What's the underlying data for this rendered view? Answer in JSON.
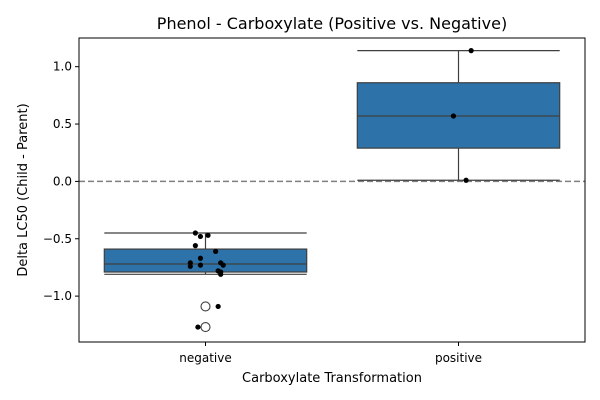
{
  "chart_data": {
    "type": "box",
    "title": "Phenol - Carboxylate (Positive vs. Negative)",
    "xlabel": "Carboxylate Transformation",
    "ylabel": "Delta LC50 (Child - Parent)",
    "categories": [
      "negative",
      "positive"
    ],
    "ylim": [
      -1.4,
      1.25
    ],
    "yticks": [
      -1.0,
      -0.5,
      0.0,
      0.5,
      1.0
    ],
    "ytick_labels": [
      "−1.0",
      "−0.5",
      "0.0",
      "0.5",
      "1.0"
    ],
    "reference_line": 0.0,
    "box_color": "#2d72a8",
    "boxes": [
      {
        "category": "negative",
        "whisker_low": -0.81,
        "q1": -0.79,
        "median": -0.72,
        "q3": -0.59,
        "whisker_high": -0.45,
        "outliers": [
          -1.09,
          -1.27
        ]
      },
      {
        "category": "positive",
        "whisker_low": 0.01,
        "q1": 0.29,
        "median": 0.57,
        "q3": 0.86,
        "whisker_high": 1.14,
        "outliers": []
      }
    ],
    "points": [
      {
        "category": "negative",
        "jitter": -0.04,
        "y": -0.45
      },
      {
        "category": "negative",
        "jitter": -0.02,
        "y": -0.48
      },
      {
        "category": "negative",
        "jitter": 0.01,
        "y": -0.47
      },
      {
        "category": "negative",
        "jitter": -0.04,
        "y": -0.56
      },
      {
        "category": "negative",
        "jitter": 0.04,
        "y": -0.61
      },
      {
        "category": "negative",
        "jitter": -0.02,
        "y": -0.67
      },
      {
        "category": "negative",
        "jitter": -0.06,
        "y": -0.71
      },
      {
        "category": "negative",
        "jitter": -0.06,
        "y": -0.74
      },
      {
        "category": "negative",
        "jitter": -0.02,
        "y": -0.73
      },
      {
        "category": "negative",
        "jitter": 0.06,
        "y": -0.71
      },
      {
        "category": "negative",
        "jitter": 0.07,
        "y": -0.73
      },
      {
        "category": "negative",
        "jitter": 0.05,
        "y": -0.78
      },
      {
        "category": "negative",
        "jitter": 0.06,
        "y": -0.79
      },
      {
        "category": "negative",
        "jitter": 0.06,
        "y": -0.81
      },
      {
        "category": "negative",
        "jitter": 0.05,
        "y": -1.09
      },
      {
        "category": "negative",
        "jitter": -0.03,
        "y": -1.27
      },
      {
        "category": "positive",
        "jitter": 0.05,
        "y": 1.14
      },
      {
        "category": "positive",
        "jitter": -0.02,
        "y": 0.57
      },
      {
        "category": "positive",
        "jitter": 0.03,
        "y": 0.01
      }
    ]
  }
}
